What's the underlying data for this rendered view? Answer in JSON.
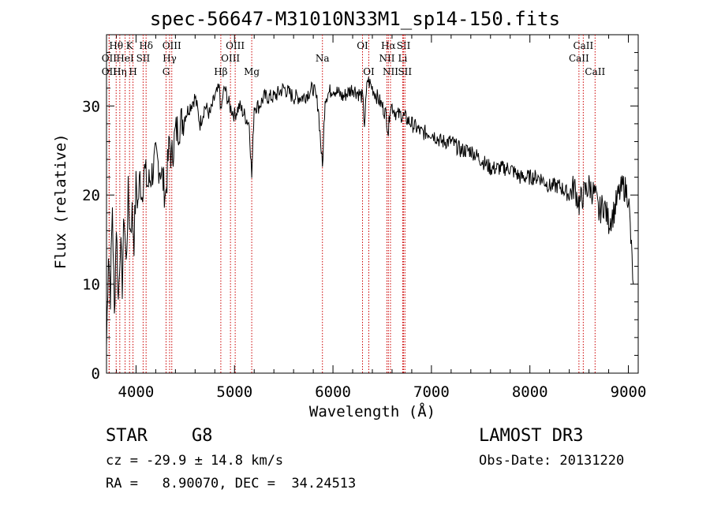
{
  "header": {
    "title": "spec-56647-M31010N33M1_sp14-150.fits"
  },
  "info": {
    "class": "STAR",
    "subclass": "G8",
    "survey": "LAMOST DR3",
    "cz": "cz = -29.9 ± 14.8 km/s",
    "obs_date": "Obs-Date: 20131220",
    "radec": "RA =   8.90070, DEC =  34.24513"
  },
  "colors": {
    "line_marker": "#cc0000",
    "spectrum": "#000000",
    "axes": "#000000"
  },
  "chart_data": {
    "type": "line",
    "title": "spec-56647-M31010N33M1_sp14-150.fits",
    "xlabel": "Wavelength (Å)",
    "ylabel": "Flux (relative)",
    "xlim": [
      3700,
      9100
    ],
    "ylim": [
      0,
      38
    ],
    "x_ticks": [
      4000,
      5000,
      6000,
      7000,
      8000,
      9000
    ],
    "y_ticks": [
      0,
      10,
      20,
      30
    ],
    "spectrum": {
      "x": [
        3700,
        3720,
        3740,
        3760,
        3780,
        3800,
        3820,
        3840,
        3860,
        3880,
        3900,
        3920,
        3940,
        3960,
        3980,
        4000,
        4020,
        4040,
        4060,
        4080,
        4100,
        4120,
        4150,
        4200,
        4250,
        4300,
        4320,
        4340,
        4360,
        4400,
        4450,
        4500,
        4550,
        4600,
        4650,
        4700,
        4750,
        4800,
        4850,
        4861,
        4880,
        4900,
        4950,
        5000,
        5050,
        5100,
        5150,
        5175,
        5200,
        5250,
        5300,
        5400,
        5500,
        5600,
        5700,
        5800,
        5850,
        5893,
        5920,
        6000,
        6100,
        6200,
        6300,
        6320,
        6350,
        6400,
        6450,
        6500,
        6540,
        6563,
        6580,
        6600,
        6650,
        6700,
        6800,
        6900,
        7000,
        7100,
        7200,
        7300,
        7400,
        7500,
        7600,
        7700,
        7800,
        7900,
        8000,
        8100,
        8200,
        8300,
        8400,
        8450,
        8500,
        8540,
        8600,
        8662,
        8700,
        8750,
        8800,
        8850,
        8900,
        8950,
        9000,
        9050
      ],
      "y": [
        3,
        14,
        9,
        19,
        6,
        17,
        8,
        15,
        10,
        18,
        12,
        20,
        16,
        18,
        15,
        21,
        19,
        22,
        20,
        23,
        22,
        21,
        22,
        24,
        23,
        20,
        23,
        26,
        24,
        27,
        28,
        29,
        30,
        31,
        28,
        30,
        29,
        31,
        32,
        29,
        31,
        32,
        30,
        29,
        30,
        29,
        28,
        22,
        30,
        30,
        31,
        31,
        32,
        31,
        31,
        32,
        30,
        23,
        31,
        32,
        31,
        32,
        31,
        28,
        33,
        32,
        31,
        30,
        29,
        27,
        30,
        30,
        29,
        29,
        28,
        27,
        27,
        26,
        26,
        25,
        25,
        24,
        23,
        23,
        23,
        22,
        22,
        22,
        21,
        21,
        20,
        21,
        19,
        20,
        21,
        20,
        18,
        19,
        17,
        18,
        20,
        21,
        20,
        10
      ]
    },
    "spectral_lines": [
      {
        "name": "Hθ",
        "wavelength": 3798,
        "tier": 1
      },
      {
        "name": "OII",
        "wavelength": 3727,
        "tier": 2
      },
      {
        "name": "OII",
        "wavelength": 3727,
        "tier": 3
      },
      {
        "name": "Hη",
        "wavelength": 3835,
        "tier": 3
      },
      {
        "name": "K",
        "wavelength": 3934,
        "tier": 1
      },
      {
        "name": "HeI",
        "wavelength": 3889,
        "tier": 2
      },
      {
        "name": "H",
        "wavelength": 3969,
        "tier": 3
      },
      {
        "name": "Hδ",
        "wavelength": 4102,
        "tier": 1
      },
      {
        "name": "SII",
        "wavelength": 4072,
        "tier": 2
      },
      {
        "name": "OIII",
        "wavelength": 4363,
        "tier": 1
      },
      {
        "name": "Hγ",
        "wavelength": 4341,
        "tier": 2
      },
      {
        "name": "G",
        "wavelength": 4305,
        "tier": 3
      },
      {
        "name": "OIII",
        "wavelength": 5007,
        "tier": 1
      },
      {
        "name": "OIII",
        "wavelength": 4959,
        "tier": 2
      },
      {
        "name": "Hβ",
        "wavelength": 4861,
        "tier": 3
      },
      {
        "name": "Mg",
        "wavelength": 5175,
        "tier": 3
      },
      {
        "name": "Na",
        "wavelength": 5893,
        "tier": 2
      },
      {
        "name": "OI",
        "wavelength": 6300,
        "tier": 1
      },
      {
        "name": "OI",
        "wavelength": 6364,
        "tier": 3
      },
      {
        "name": "Hα",
        "wavelength": 6563,
        "tier": 1
      },
      {
        "name": "SII",
        "wavelength": 6717,
        "tier": 1
      },
      {
        "name": "NII",
        "wavelength": 6548,
        "tier": 2
      },
      {
        "name": "Li",
        "wavelength": 6708,
        "tier": 2
      },
      {
        "name": "NII",
        "wavelength": 6584,
        "tier": 3
      },
      {
        "name": "SII",
        "wavelength": 6731,
        "tier": 3
      },
      {
        "name": "CaII",
        "wavelength": 8542,
        "tier": 1
      },
      {
        "name": "CaII",
        "wavelength": 8498,
        "tier": 2
      },
      {
        "name": "CaII",
        "wavelength": 8662,
        "tier": 3
      }
    ]
  }
}
